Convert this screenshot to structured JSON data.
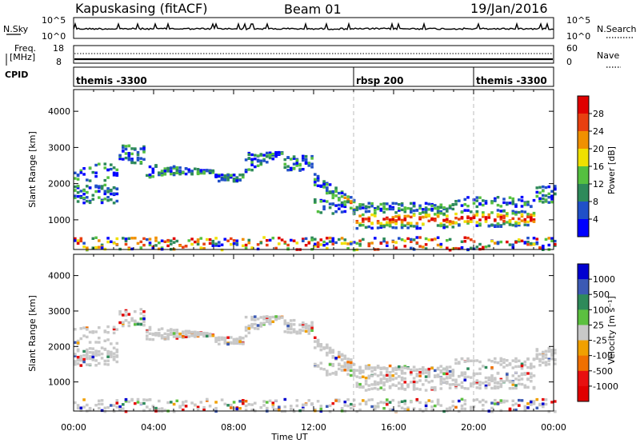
{
  "header": {
    "station": "Kapuskasing (fitACF)",
    "beam": "Beam 01",
    "date": "19/Jan/2016"
  },
  "strips": {
    "nsky": {
      "label": "N.Sky",
      "ticks": [
        "10^5",
        "10^0"
      ],
      "right_label": "N.Search",
      "right_ticks": [
        "10^5",
        "10^0"
      ]
    },
    "freq": {
      "label_line1": "Freq.",
      "label_line2": "[MHz]",
      "ticks": [
        "18",
        "8"
      ],
      "right_label": "Nave",
      "right_ticks": [
        "60",
        "0"
      ]
    },
    "cpid": {
      "label": "CPID",
      "segments": [
        {
          "label": "themis -3300",
          "start_hour": 0
        },
        {
          "label": "rbsp 200",
          "start_hour": 14
        },
        {
          "label": "themis -3300",
          "start_hour": 20
        }
      ]
    }
  },
  "chart_data": [
    {
      "type": "heatmap",
      "name": "power",
      "ylabel": "Slant Range [km]",
      "xlim": [
        0,
        24
      ],
      "ylim": [
        180,
        4600
      ],
      "yticks": [
        1000,
        2000,
        3000,
        4000
      ],
      "colorbar": {
        "label": "Power [dB]",
        "ticks": [
          4,
          8,
          12,
          16,
          20,
          24,
          28
        ],
        "colors": [
          "#0000ff",
          "#2050c8",
          "#2e8a5a",
          "#55c040",
          "#f0e000",
          "#f09000",
          "#e84010",
          "#e00000"
        ]
      }
    },
    {
      "type": "heatmap",
      "name": "velocity",
      "ylabel": "Slant Range [km]",
      "xlabel": "Time UT",
      "xlim": [
        0,
        24
      ],
      "ylim": [
        180,
        4600
      ],
      "yticks": [
        1000,
        2000,
        3000,
        4000
      ],
      "xticks": [
        "00:00",
        "04:00",
        "08:00",
        "12:00",
        "16:00",
        "20:00",
        "00:00"
      ],
      "colorbar": {
        "label": "Velocity [m s⁻¹]",
        "ticks": [
          1000,
          500,
          100,
          25,
          -25,
          -100,
          -500,
          -1000
        ],
        "colors": [
          "#0000d0",
          "#3c5ab4",
          "#2e8a5a",
          "#5cc040",
          "#c8c8c8",
          "#f0a000",
          "#f07000",
          "#e81010",
          "#e00000"
        ]
      }
    }
  ]
}
